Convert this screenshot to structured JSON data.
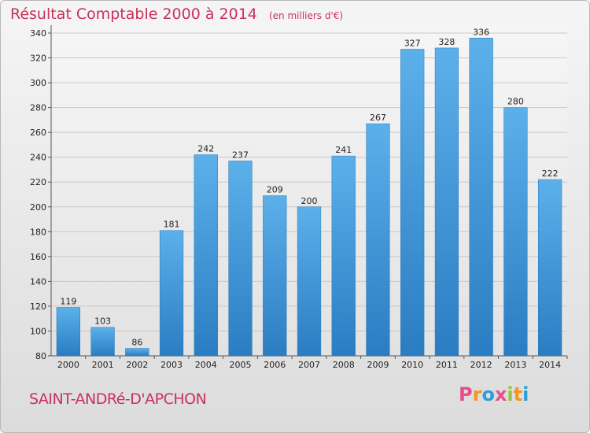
{
  "title": "Résultat Comptable 2000 à 2014",
  "unit": "(en milliers d'€)",
  "commune": "SAINT-ANDRé-D'APCHON",
  "logo": {
    "letters": [
      "P",
      "r",
      "o",
      "x",
      "i",
      "t",
      "i"
    ],
    "colors": [
      "#e84c8b",
      "#f7941d",
      "#2b9fd8",
      "#e84c8b",
      "#8dc63f",
      "#f7941d",
      "#2b9fd8"
    ]
  },
  "colors": {
    "accent": "#c8325a",
    "bar_top": "#5aaee8",
    "bar_bottom": "#2a7fc4"
  },
  "chart_data": {
    "type": "bar",
    "categories": [
      "2000",
      "2001",
      "2002",
      "2003",
      "2004",
      "2005",
      "2006",
      "2007",
      "2008",
      "2009",
      "2010",
      "2011",
      "2012",
      "2013",
      "2014"
    ],
    "values": [
      119,
      103,
      86,
      181,
      242,
      237,
      209,
      200,
      241,
      267,
      327,
      328,
      336,
      280,
      222
    ],
    "title": "Résultat Comptable 2000 à 2014",
    "ylim": [
      80,
      340
    ],
    "yticks": [
      80,
      100,
      120,
      140,
      160,
      180,
      200,
      220,
      240,
      260,
      280,
      300,
      320,
      340
    ],
    "grid": true
  }
}
